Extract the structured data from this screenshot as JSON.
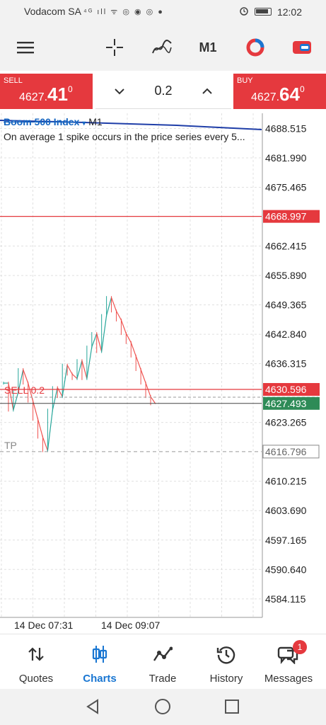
{
  "status_bar": {
    "carrier": "Vodacom SA",
    "signal_icons": "⁴ᴳ ıll ᯤ ◎ ◉ ◎ ●",
    "time": "12:02"
  },
  "toolbar": {
    "timeframe": "M1",
    "icons": [
      "menu-icon",
      "crosshair-icon",
      "indicator-icon",
      "objects-icon",
      "one-click-trading-icon"
    ]
  },
  "trade": {
    "sell_label": "SELL",
    "sell_price_prefix": "4627.",
    "sell_price_big": "41",
    "sell_price_sup": "0",
    "buy_label": "BUY",
    "buy_price_prefix": "4627.",
    "buy_price_big": "64",
    "buy_price_sup": "0",
    "lot": "0.2"
  },
  "chart": {
    "symbol": "Boom 500 Index",
    "symbol_dropdown": "▾",
    "timeframe": "M1",
    "description": "On average 1 spike occurs in the price series every 5...",
    "price_labels": [
      "4688.515",
      "4681.990",
      "4675.465",
      "4662.415",
      "4655.890",
      "4649.365",
      "4642.840",
      "4636.315",
      "4623.265",
      "4610.215",
      "4603.690",
      "4597.165",
      "4590.640",
      "4584.115"
    ],
    "level_red": "4668.997",
    "level_sell": "4630.596",
    "level_bid": "4627.493",
    "level_tp": "4616.796",
    "sell_line_label": "SELL 0.2",
    "tp_label": "TP",
    "time_labels": [
      "14 Dec 07:31",
      "14 Dec 09:07"
    ],
    "colors": {
      "bull": "#26a69a",
      "bear": "#ef5350",
      "grid": "#e0e0e0",
      "level": "#e5393e",
      "bid": "#2e8b57"
    }
  },
  "chart_data": {
    "type": "candlestick",
    "ylim": [
      4580,
      4690
    ],
    "close_series": [
      4632,
      4626,
      4630,
      4635,
      4632,
      4628,
      4624,
      4620,
      4617,
      4626,
      4631,
      4629,
      4636,
      4634,
      4633,
      4637,
      4633,
      4640,
      4643,
      4639,
      4647,
      4651,
      4648,
      4646,
      4643,
      4641,
      4638,
      4635,
      4632,
      4629,
      4627.4
    ]
  },
  "bottom_nav": {
    "items": [
      {
        "label": "Quotes",
        "icon": "quotes-arrows-icon"
      },
      {
        "label": "Charts",
        "icon": "charts-candles-icon"
      },
      {
        "label": "Trade",
        "icon": "trade-line-icon"
      },
      {
        "label": "History",
        "icon": "history-clock-icon"
      },
      {
        "label": "Messages",
        "icon": "messages-bubble-icon",
        "badge": "1"
      }
    ]
  }
}
